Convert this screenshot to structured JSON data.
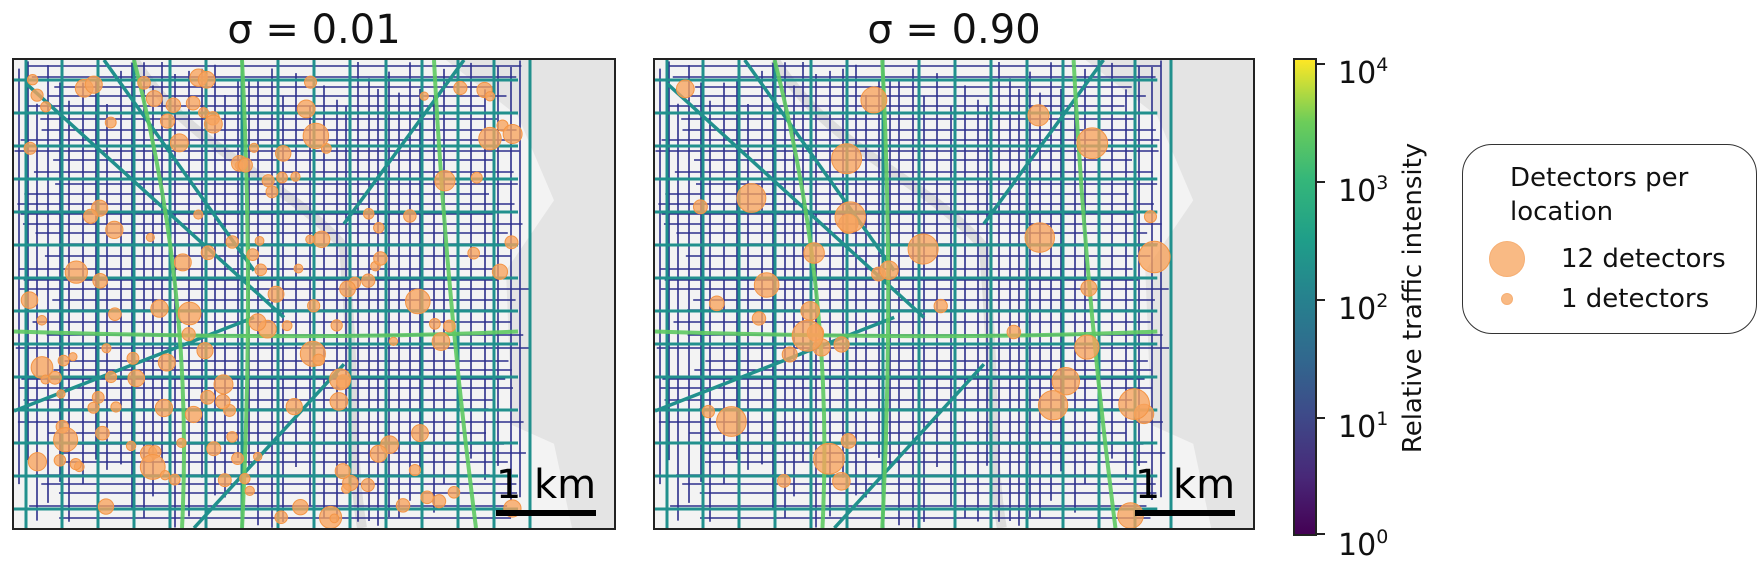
{
  "panels": [
    {
      "title": "σ = 0.01",
      "scalebar_label": "1 km",
      "marker_mode": "many-small"
    },
    {
      "title": "σ = 0.90",
      "scalebar_label": "1 km",
      "marker_mode": "few-large"
    }
  ],
  "colorbar": {
    "title": "Relative traffic intensity",
    "scale": "log",
    "range": [
      1,
      10000
    ],
    "ticks": [
      {
        "base": "10",
        "exp": "4"
      },
      {
        "base": "10",
        "exp": "3"
      },
      {
        "base": "10",
        "exp": "2"
      },
      {
        "base": "10",
        "exp": "1"
      },
      {
        "base": "10",
        "exp": "0"
      }
    ],
    "colormap": "viridis"
  },
  "legend": {
    "title": "Detectors per location",
    "items": [
      {
        "label": "12 detectors",
        "detectors": 12
      },
      {
        "label": "1 detectors",
        "detectors": 1
      }
    ]
  },
  "colors": {
    "marker": "#f7a35c",
    "water": "#e4e4e4",
    "land": "#f3f3f3",
    "road_low": "#2c2f8c",
    "road_mid": "#21908d",
    "road_high": "#5ec962"
  }
}
